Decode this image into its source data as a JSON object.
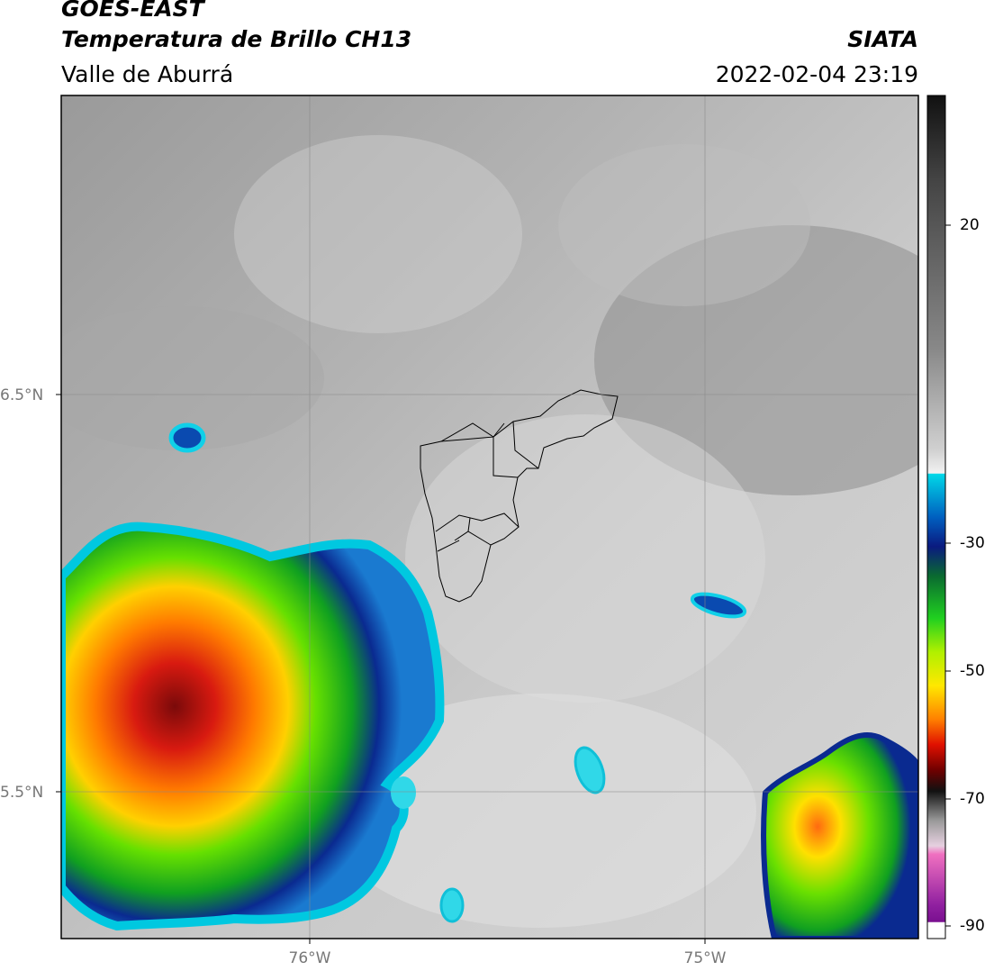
{
  "header": {
    "satellite": "GOES-EAST",
    "product": "Temperatura de Brillo CH13",
    "region": "Valle de Aburrá",
    "organization": "SIATA",
    "datetime": "2022-02-04 23:19"
  },
  "axes": {
    "lat_labels": [
      "6.5°N",
      "5.5°N"
    ],
    "lon_labels": [
      "76°W",
      "75°W"
    ]
  },
  "colorbar": {
    "ticks": [
      "20",
      "-30",
      "-50",
      "-70",
      "-90"
    ],
    "gray_top": "#1a1a1a",
    "gray_bottom": "#f0f0f0"
  }
}
